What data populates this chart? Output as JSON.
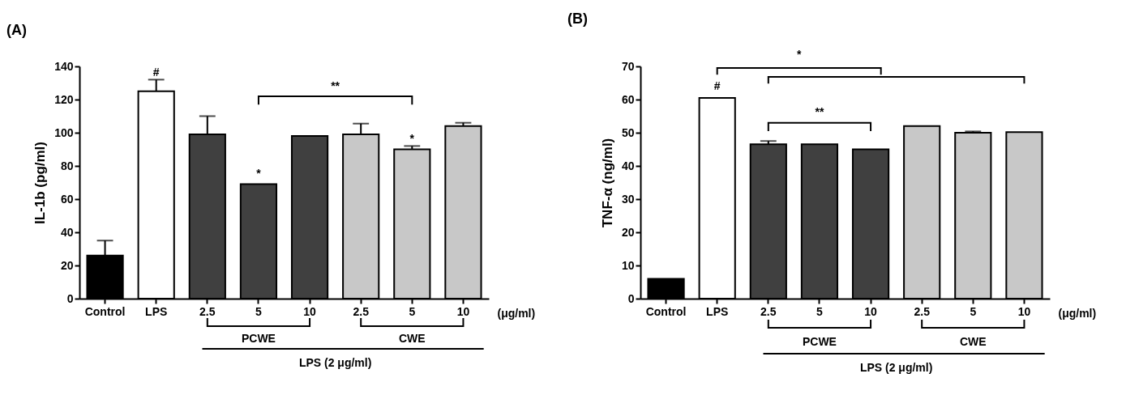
{
  "chart_data": [
    {
      "type": "bar",
      "title": "(A)",
      "ylabel": "IL-1b (pg/ml)",
      "xlabel": "(μg/ml)",
      "categories": [
        "Control",
        "LPS",
        "2.5",
        "5",
        "10",
        "2.5",
        "5",
        "10"
      ],
      "values": [
        26,
        125,
        99,
        69,
        98,
        99,
        90,
        104
      ],
      "colors": [
        "#000000",
        "#ffffff",
        "#404040",
        "#404040",
        "#404040",
        "#c8c8c8",
        "#c8c8c8",
        "#c8c8c8"
      ],
      "errors": [
        [
          26,
          35
        ],
        [
          125,
          132
        ],
        [
          99,
          110
        ],
        null,
        null,
        [
          99,
          105.5
        ],
        [
          90,
          92
        ],
        [
          104,
          106
        ]
      ],
      "ylim": [
        0,
        140
      ],
      "yticks": [
        0,
        20,
        40,
        60,
        80,
        100,
        120,
        140
      ],
      "annotations": [
        "#",
        "*",
        "*",
        "**",
        "PCWE",
        "CWE",
        "LPS (2 μg/ml)"
      ]
    },
    {
      "type": "bar",
      "title": "(B)",
      "ylabel": "TNF-α (ng/ml)",
      "xlabel": "(μg/ml)",
      "categories": [
        "Control",
        "LPS",
        "2.5",
        "5",
        "10",
        "2.5",
        "5",
        "10"
      ],
      "values": [
        6,
        60.5,
        46.5,
        46.5,
        45,
        52,
        50,
        50.2
      ],
      "colors": [
        "#000000",
        "#ffffff",
        "#404040",
        "#404040",
        "#404040",
        "#c8c8c8",
        "#c8c8c8",
        "#c8c8c8"
      ],
      "errors": [
        null,
        null,
        [
          46.5,
          47.5
        ],
        null,
        null,
        null,
        [
          50,
          50.4
        ],
        null
      ],
      "ylim": [
        0,
        70
      ],
      "yticks": [
        0,
        10,
        20,
        30,
        40,
        50,
        60,
        70
      ],
      "annotations": [
        "*",
        "#",
        "**",
        "PCWE",
        "CWE",
        "LPS (2 μg/ml)"
      ]
    }
  ]
}
